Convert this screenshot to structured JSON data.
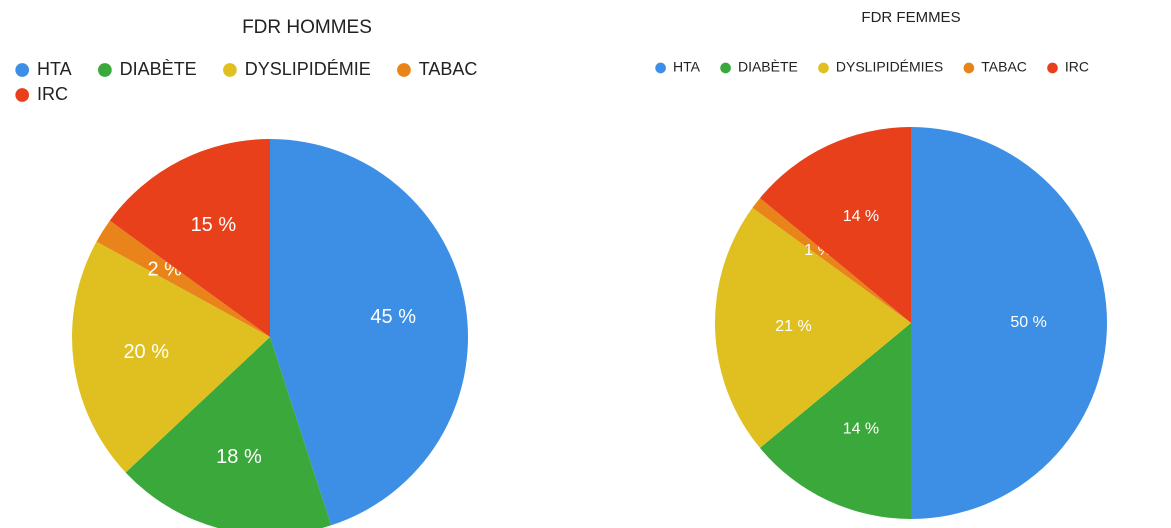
{
  "chart_data": [
    {
      "type": "pie",
      "title": "FDR HOMMES",
      "categories": [
        "HTA",
        "DIABÈTE",
        "DYSLIPIDÉMIE",
        "TABAC",
        "IRC"
      ],
      "values": [
        45,
        18,
        20,
        2,
        15
      ],
      "value_labels": [
        "45 %",
        "18 %",
        "20 %",
        "2 %",
        "15 %"
      ],
      "colors": [
        "#3d8fe6",
        "#3aa83a",
        "#e0c020",
        "#e8841a",
        "#e8401a"
      ]
    },
    {
      "type": "pie",
      "title": "FDR FEMMES",
      "categories": [
        "HTA",
        "DIABÈTE",
        "DYSLIPIDÉMIES",
        "TABAC",
        "IRC"
      ],
      "values": [
        50,
        14,
        21,
        1,
        14
      ],
      "value_labels": [
        "50 %",
        "14 %",
        "21 %",
        "1 %",
        "14 %"
      ],
      "colors": [
        "#3d8fe6",
        "#3aa83a",
        "#e0c020",
        "#e8841a",
        "#e8401a"
      ]
    }
  ]
}
